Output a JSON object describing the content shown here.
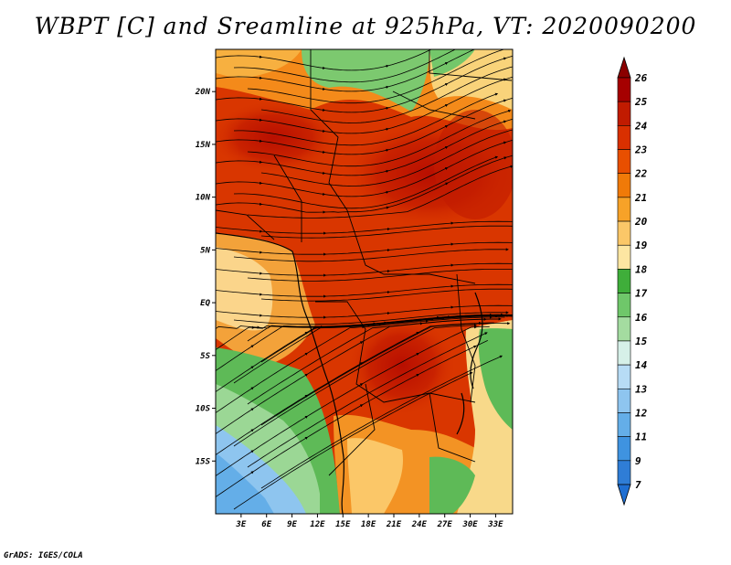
{
  "title": "WBPT [C] and Sreamline at 925hPa, VT: 2020090200",
  "credit": "GrADS: IGES/COLA",
  "map": {
    "lon_range": [
      0,
      35
    ],
    "lat_range": [
      -20,
      24
    ],
    "lat_ticks": [
      "20N",
      "15N",
      "10N",
      "5N",
      "EQ",
      "5S",
      "10S",
      "15S"
    ],
    "lon_ticks": [
      "3E",
      "6E",
      "9E",
      "12E",
      "15E",
      "18E",
      "21E",
      "24E",
      "27E",
      "30E",
      "33E"
    ]
  },
  "colorbar": {
    "labels": [
      "26",
      "25",
      "24",
      "23",
      "22",
      "21",
      "20",
      "19",
      "18",
      "17",
      "16",
      "15",
      "14",
      "13",
      "12",
      "11",
      "9",
      "7"
    ],
    "colors": [
      "#a50000",
      "#c11b00",
      "#d93000",
      "#e84f00",
      "#f07a08",
      "#f7a228",
      "#fbc768",
      "#fde6a2",
      "#3fae3a",
      "#6fc76a",
      "#a4dca0",
      "#d6f0e8",
      "#b7dcf5",
      "#8ec5ef",
      "#64aee8",
      "#3f93e0",
      "#2f7dd6"
    ],
    "top_color": "#8b0000",
    "bottom_color": "#1f6fd2"
  }
}
